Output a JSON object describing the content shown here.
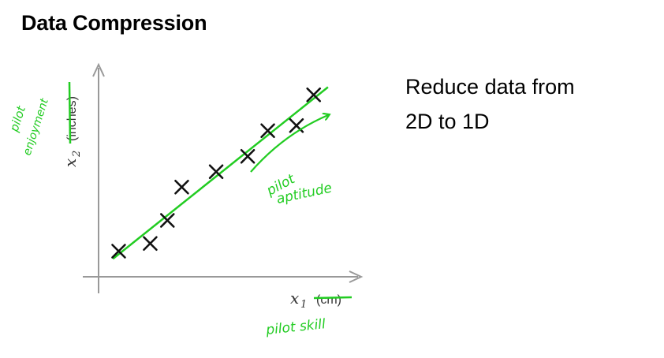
{
  "title": "Data Compression",
  "description": {
    "line1": "Reduce data from",
    "line2": "2D to 1D"
  },
  "axes": {
    "x_label": "x",
    "x_subscript": "1",
    "x_unit": "(cm)",
    "y_label": "x",
    "y_subscript": "2",
    "y_unit": "(inches)"
  },
  "annotations": {
    "x_axis_note": "pilot skill",
    "y_axis_note_line1": "pilot",
    "y_axis_note_line2": "enjoyment",
    "line_note_line1": "pilot",
    "line_note_line2": "aptitude"
  },
  "colors": {
    "axis": "#999999",
    "marker": "#111111",
    "annotation": "#22cc22"
  },
  "chart_data": {
    "type": "scatter",
    "marker": "x",
    "points": [
      {
        "x": 0.7,
        "y": 1.0
      },
      {
        "x": 1.8,
        "y": 1.3
      },
      {
        "x": 2.4,
        "y": 2.2
      },
      {
        "x": 2.9,
        "y": 3.5
      },
      {
        "x": 4.1,
        "y": 4.1
      },
      {
        "x": 5.2,
        "y": 4.7
      },
      {
        "x": 5.9,
        "y": 5.7
      },
      {
        "x": 6.9,
        "y": 5.9
      },
      {
        "x": 7.5,
        "y": 7.1
      }
    ],
    "fit_line": {
      "x": [
        0.5,
        8.0
      ],
      "y": [
        0.7,
        7.4
      ]
    },
    "xlim": [
      0,
      8.8
    ],
    "ylim": [
      0,
      8.0
    ]
  }
}
